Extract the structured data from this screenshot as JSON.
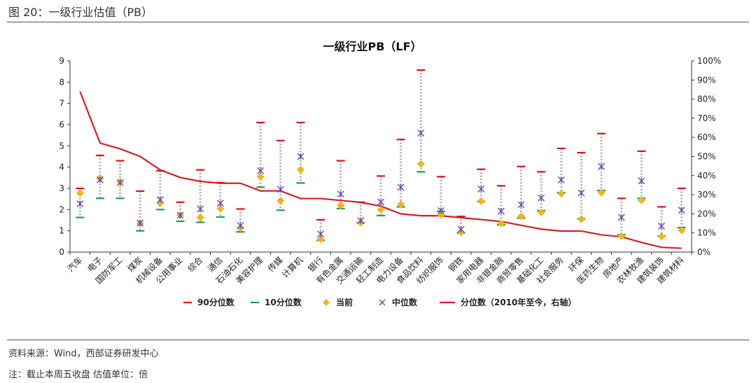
{
  "figure": {
    "title": "图 20：一级行业估值（PB）",
    "source": "资料来源：Wind，西部证券研发中心",
    "note": "注：截止本周五收盘 估值单位：倍"
  },
  "colors": {
    "p90": "#e0141c",
    "p10": "#1aa24a",
    "current": "#f5b31b",
    "median": "#6a4aa8",
    "percentile_line": "#d32027",
    "range_dots": "#b0b0b0"
  },
  "chart_data": {
    "type": "line",
    "title": "一级行业PB（LF）",
    "categories": [
      "汽车",
      "电子",
      "国防军工",
      "煤炭",
      "机械设备",
      "公用事业",
      "综合",
      "通信",
      "石油石化",
      "美容护理",
      "传媒",
      "计算机",
      "银行",
      "有色金属",
      "交通运输",
      "轻工制造",
      "电力设备",
      "食品饮料",
      "纺织服饰",
      "钢铁",
      "家用电器",
      "非银金融",
      "商贸零售",
      "基础化工",
      "社会服务",
      "环保",
      "医药生物",
      "房地产",
      "农林牧渔",
      "建筑装饰",
      "建筑材料"
    ],
    "y_left": {
      "min": 0,
      "max": 9,
      "ticks": [
        "0",
        "1",
        "2",
        "3",
        "4",
        "5",
        "6",
        "7",
        "8",
        "9"
      ]
    },
    "y_right": {
      "min": 0,
      "max": 100,
      "unit": "%",
      "ticks": [
        "0%",
        "10%",
        "20%",
        "30%",
        "40%",
        "50%",
        "60%",
        "70%",
        "80%",
        "90%",
        "100%"
      ]
    },
    "series": [
      {
        "name": "90分位数",
        "marker": "dash",
        "axis": "left",
        "values": [
          3.0,
          4.55,
          4.3,
          2.87,
          3.83,
          2.35,
          3.87,
          3.27,
          2.03,
          6.1,
          5.25,
          6.1,
          1.52,
          4.3,
          2.35,
          3.58,
          5.3,
          8.57,
          3.55,
          1.68,
          3.9,
          3.12,
          4.03,
          3.78,
          4.88,
          4.68,
          5.58,
          2.53,
          4.75,
          2.13,
          3.0
        ]
      },
      {
        "name": "10分位数",
        "marker": "dash",
        "axis": "left",
        "values": [
          1.63,
          2.53,
          2.53,
          1.0,
          2.0,
          1.45,
          1.4,
          1.65,
          0.95,
          3.05,
          1.97,
          3.25,
          0.55,
          2.05,
          1.38,
          1.72,
          2.13,
          3.78,
          1.92,
          0.9,
          2.38,
          1.28,
          1.6,
          1.95,
          2.8,
          1.57,
          2.9,
          0.82,
          2.53,
          0.75,
          1.15
        ]
      },
      {
        "name": "当前",
        "marker": "diamond",
        "axis": "left",
        "values": [
          2.78,
          3.47,
          3.3,
          1.35,
          2.3,
          1.75,
          1.63,
          2.05,
          1.13,
          3.55,
          2.42,
          3.88,
          0.6,
          2.2,
          1.38,
          2.0,
          2.25,
          4.15,
          1.75,
          0.93,
          2.4,
          1.35,
          1.68,
          1.87,
          2.75,
          1.55,
          2.8,
          0.75,
          2.43,
          0.73,
          1.02
        ]
      },
      {
        "name": "中位数",
        "marker": "x",
        "axis": "left",
        "values": [
          2.27,
          3.4,
          3.27,
          1.37,
          2.47,
          1.73,
          2.03,
          2.3,
          1.25,
          3.83,
          2.95,
          4.5,
          0.85,
          2.73,
          1.48,
          2.35,
          3.05,
          5.6,
          1.95,
          1.07,
          2.97,
          1.93,
          2.23,
          2.55,
          3.4,
          2.78,
          4.03,
          1.63,
          3.35,
          1.22,
          1.97
        ]
      },
      {
        "name": "分位数（2010年至今，右轴）",
        "marker": "line",
        "axis": "right",
        "values": [
          84,
          57,
          54,
          50,
          43,
          39,
          37,
          36,
          36,
          32,
          32,
          28,
          28,
          27,
          26,
          24,
          20,
          19,
          19,
          18,
          17,
          16,
          14,
          12,
          11,
          11,
          9,
          8,
          5,
          2.5,
          2
        ]
      }
    ]
  }
}
